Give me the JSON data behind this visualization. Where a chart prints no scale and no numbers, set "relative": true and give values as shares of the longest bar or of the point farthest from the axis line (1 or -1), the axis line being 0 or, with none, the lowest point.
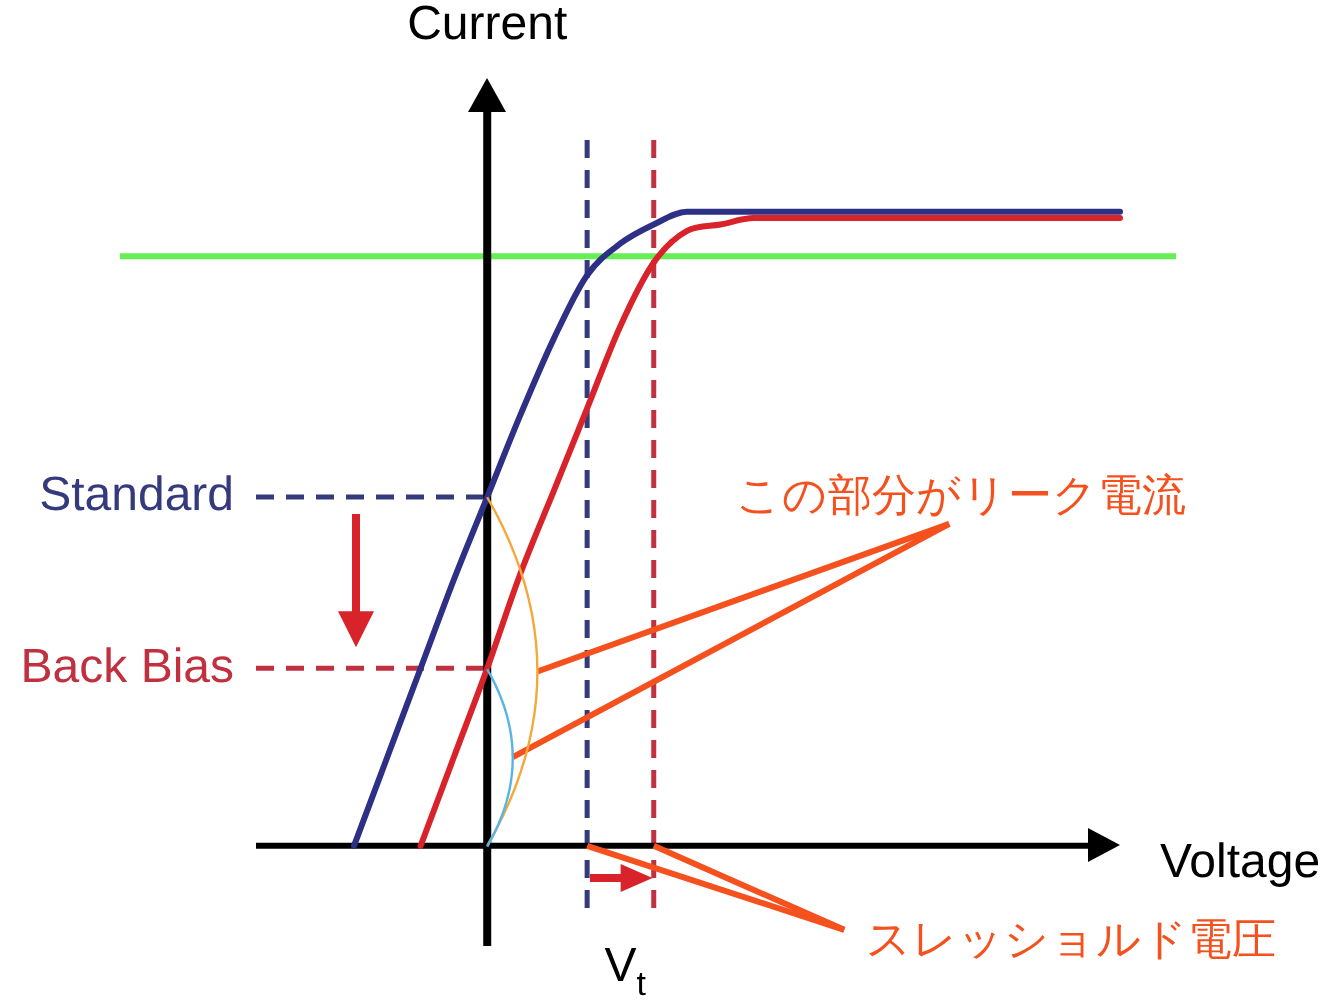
{
  "chart_data": {
    "type": "line",
    "relative": true,
    "xlabel": "Voltage",
    "ylabel": "Current",
    "categories": [
      null,
      null,
      null,
      null,
      null,
      null,
      null,
      null,
      null,
      null,
      null,
      null,
      null,
      null,
      null,
      null,
      null,
      null,
      null,
      null,
      null,
      null,
      null,
      null
    ],
    "series": [
      {
        "color": "#2e3086",
        "values": [
          0,
          0.14,
          0.28,
          0.42,
          0.55,
          0.68,
          0.8,
          0.9,
          0.95,
          0.98,
          1,
          1,
          1,
          1,
          1,
          1,
          1,
          1,
          1,
          1,
          1,
          1,
          1,
          1
        ]
      },
      {
        "color": "#d8232a",
        "values": [
          null,
          null,
          0,
          0.14,
          0.28,
          0.43,
          0.56,
          0.69,
          0.82,
          0.92,
          0.97,
          0.98,
          0.99,
          0.99,
          0.99,
          0.99,
          0.99,
          0.99,
          0.99,
          0.99,
          0.99,
          0.99,
          0.99,
          0.99
        ]
      }
    ],
    "ref_lines": [
      {
        "axis": "y",
        "value": 0.93,
        "color": "#66ee55"
      },
      {
        "axis": "y",
        "value": 0.55,
        "label": "Standard",
        "color": "#353a7c",
        "line_style": "dashed"
      },
      {
        "axis": "y",
        "value": 0.28,
        "label": "Back Bias",
        "color": "#c0303f",
        "line_style": "dashed"
      }
    ],
    "annotations": [
      "この部分がリーク電流",
      "スレッショルド電圧",
      "V$_{t}$"
    ]
  }
}
